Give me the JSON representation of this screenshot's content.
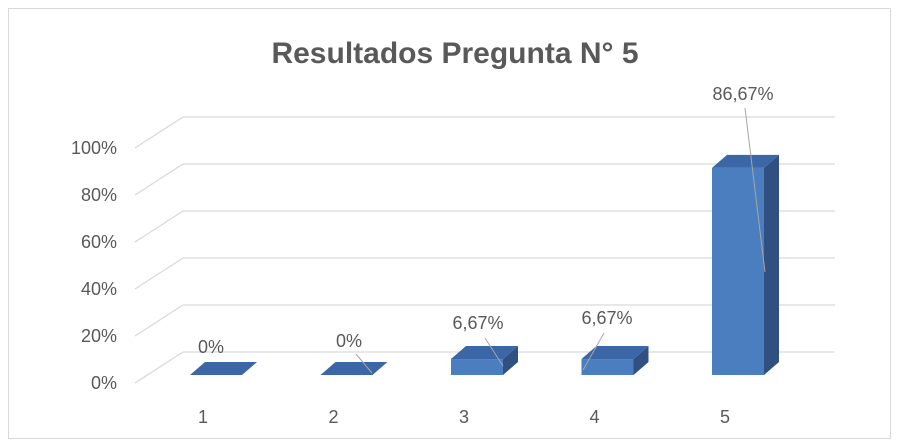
{
  "chart_data": {
    "type": "bar3d",
    "title": "Resultados Pregunta N° 5",
    "categories": [
      "1",
      "2",
      "3",
      "4",
      "5"
    ],
    "values": [
      0,
      0,
      6.67,
      6.67,
      86.67
    ],
    "value_labels": [
      "0%",
      "0%",
      "6,67%",
      "6,67%",
      "86,67%"
    ],
    "color": "#4a7ebf",
    "ylim": [
      0,
      100
    ],
    "yticks": [
      {
        "value": 0,
        "label": "0%"
      },
      {
        "value": 20,
        "label": "20%"
      },
      {
        "value": 40,
        "label": "40%"
      },
      {
        "value": 60,
        "label": "60%"
      },
      {
        "value": 80,
        "label": "80%"
      },
      {
        "value": 100,
        "label": "100%"
      }
    ],
    "grid": true
  }
}
